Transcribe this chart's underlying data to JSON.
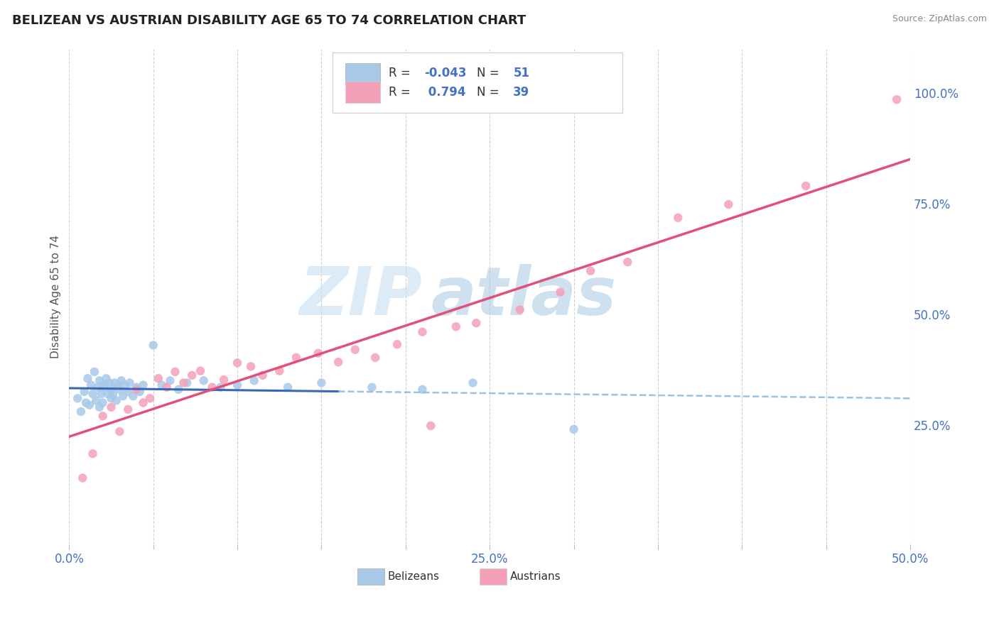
{
  "title": "BELIZEAN VS AUSTRIAN DISABILITY AGE 65 TO 74 CORRELATION CHART",
  "source": "Source: ZipAtlas.com",
  "ylabel": "Disability Age 65 to 74",
  "xlim": [
    0.0,
    0.5
  ],
  "ylim": [
    -0.02,
    1.1
  ],
  "xtick_positions": [
    0.0,
    0.05,
    0.1,
    0.15,
    0.2,
    0.25,
    0.3,
    0.35,
    0.4,
    0.45,
    0.5
  ],
  "xticklabels": [
    "0.0%",
    "",
    "",
    "",
    "",
    "25.0%",
    "",
    "",
    "",
    "",
    "50.0%"
  ],
  "yticks_right": [
    0.25,
    0.5,
    0.75,
    1.0
  ],
  "yticklabels_right": [
    "25.0%",
    "50.0%",
    "75.0%",
    "100.0%"
  ],
  "belizean_color": "#a8c8e8",
  "austrian_color": "#f4a0b8",
  "belizean_line_color": "#3a68b8",
  "austrian_line_color": "#e0507a",
  "dashed_line_color": "#88b8e0",
  "belizean_R": -0.043,
  "belizean_N": 51,
  "austrian_R": 0.794,
  "austrian_N": 39,
  "watermark_zip": "ZIP",
  "watermark_atlas": "atlas",
  "background_color": "#ffffff",
  "grid_color": "#cccccc",
  "title_fontsize": 13,
  "belizean_x": [
    0.005,
    0.007,
    0.009,
    0.01,
    0.011,
    0.012,
    0.013,
    0.014,
    0.015,
    0.016,
    0.017,
    0.018,
    0.018,
    0.019,
    0.02,
    0.02,
    0.021,
    0.022,
    0.023,
    0.024,
    0.025,
    0.025,
    0.026,
    0.027,
    0.028,
    0.029,
    0.03,
    0.031,
    0.032,
    0.033,
    0.035,
    0.036,
    0.038,
    0.04,
    0.042,
    0.044,
    0.05,
    0.055,
    0.06,
    0.065,
    0.07,
    0.08,
    0.09,
    0.1,
    0.11,
    0.13,
    0.15,
    0.18,
    0.21,
    0.24,
    0.3
  ],
  "belizean_y": [
    0.31,
    0.28,
    0.325,
    0.3,
    0.355,
    0.295,
    0.34,
    0.32,
    0.37,
    0.305,
    0.335,
    0.35,
    0.29,
    0.32,
    0.335,
    0.3,
    0.34,
    0.355,
    0.32,
    0.345,
    0.31,
    0.33,
    0.32,
    0.345,
    0.305,
    0.34,
    0.33,
    0.35,
    0.315,
    0.34,
    0.325,
    0.345,
    0.315,
    0.335,
    0.325,
    0.34,
    0.43,
    0.34,
    0.35,
    0.33,
    0.345,
    0.35,
    0.335,
    0.34,
    0.35,
    0.335,
    0.345,
    0.335,
    0.33,
    0.345,
    0.24
  ],
  "austrian_x": [
    0.008,
    0.014,
    0.02,
    0.025,
    0.03,
    0.035,
    0.04,
    0.044,
    0.048,
    0.053,
    0.058,
    0.063,
    0.068,
    0.073,
    0.078,
    0.085,
    0.092,
    0.1,
    0.108,
    0.115,
    0.125,
    0.135,
    0.148,
    0.16,
    0.17,
    0.182,
    0.195,
    0.21,
    0.215,
    0.23,
    0.242,
    0.268,
    0.292,
    0.31,
    0.332,
    0.362,
    0.392,
    0.438,
    0.492
  ],
  "austrian_y": [
    0.13,
    0.185,
    0.27,
    0.29,
    0.235,
    0.285,
    0.33,
    0.3,
    0.31,
    0.355,
    0.335,
    0.37,
    0.345,
    0.362,
    0.372,
    0.335,
    0.352,
    0.39,
    0.382,
    0.362,
    0.372,
    0.402,
    0.412,
    0.392,
    0.42,
    0.402,
    0.432,
    0.46,
    0.248,
    0.472,
    0.48,
    0.51,
    0.55,
    0.598,
    0.618,
    0.718,
    0.748,
    0.79,
    0.985
  ]
}
